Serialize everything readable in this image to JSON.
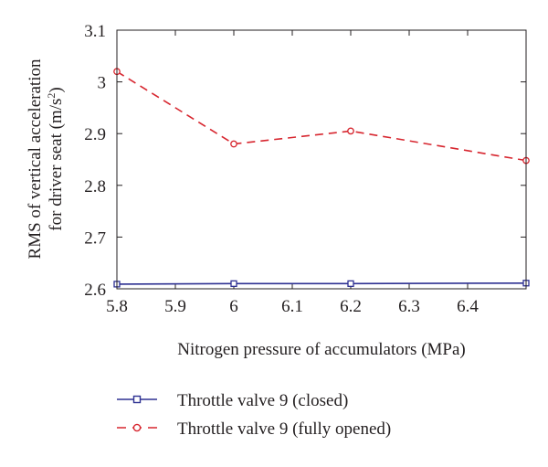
{
  "chart_data": {
    "type": "line",
    "xlabel": "Nitrogen pressure of accumulators (MPa)",
    "ylabel_line1": "RMS of vertical acceleration",
    "ylabel_line2_prefix": "for driver seat (m/s",
    "ylabel_line2_sup": "2",
    "ylabel_line2_suffix": ")",
    "xlim": [
      5.8,
      6.5
    ],
    "ylim": [
      2.6,
      3.1
    ],
    "x_ticks": [
      5.8,
      5.9,
      6.0,
      6.1,
      6.2,
      6.3,
      6.4
    ],
    "x_tick_labels": [
      "5.8",
      "5.9",
      "6",
      "6.1",
      "6.2",
      "6.3",
      "6.4"
    ],
    "y_ticks": [
      2.6,
      2.7,
      2.8,
      2.9,
      3.0,
      3.1
    ],
    "y_tick_labels": [
      "2.6",
      "2.7",
      "2.8",
      "2.9",
      "3",
      "3.1"
    ],
    "grid": false,
    "legend_position": "below",
    "series": [
      {
        "name": "Throttle valve 9 (closed)",
        "color": "#2e3192",
        "line_style": "solid",
        "marker": "square",
        "x": [
          5.8,
          6.0,
          6.2,
          6.5
        ],
        "values": [
          2.609,
          2.61,
          2.61,
          2.611
        ]
      },
      {
        "name": "Throttle valve 9 (fully opened)",
        "color": "#d7262f",
        "line_style": "dashed",
        "marker": "circle",
        "x": [
          5.8,
          6.0,
          6.2,
          6.5
        ],
        "values": [
          3.02,
          2.88,
          2.905,
          2.848
        ]
      }
    ]
  }
}
